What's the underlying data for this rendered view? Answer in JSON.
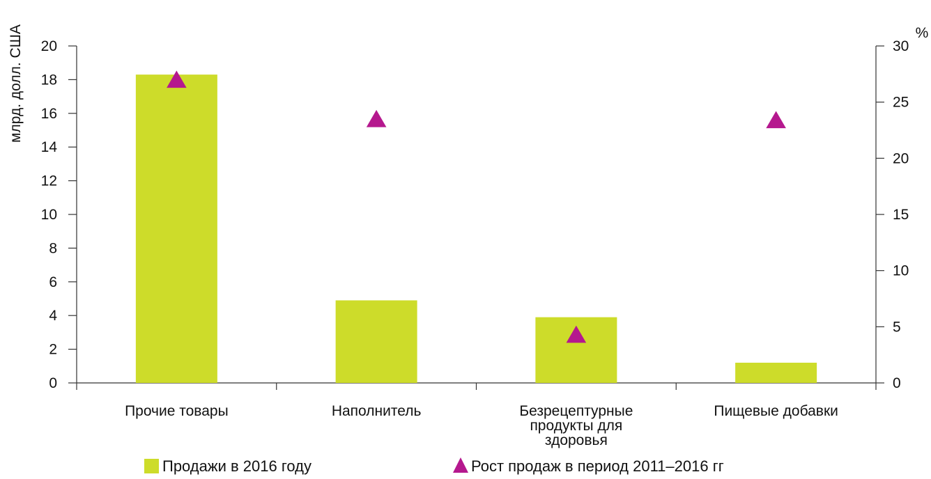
{
  "chart_data": {
    "type": "bar",
    "categories": [
      [
        "Прочие товары"
      ],
      [
        "Наполнитель"
      ],
      [
        "Безрецептурные",
        "продукты для",
        "здоровья"
      ],
      [
        "Пищевые добавки"
      ]
    ],
    "series": [
      {
        "name": "Продажи в 2016 году",
        "type": "bar",
        "axis": "left",
        "values": [
          18.3,
          4.9,
          3.9,
          1.2
        ]
      },
      {
        "name": "Рост продаж в период 2011–2016 гг",
        "type": "marker-triangle",
        "axis": "right",
        "values": [
          27,
          23.5,
          4.3,
          23.4
        ]
      }
    ],
    "ylabel": "млрд. долл. США",
    "ylabel_right": "%",
    "ylim": [
      0,
      20
    ],
    "ylim_right": [
      0,
      30
    ],
    "yticks": [
      "0",
      "2",
      "4",
      "6",
      "8",
      "10",
      "12",
      "14",
      "16",
      "18",
      "20"
    ],
    "yticks_right": [
      "0",
      "5",
      "10",
      "15",
      "20",
      "25",
      "30"
    ],
    "grid": false,
    "legend_position": "bottom",
    "colors": {
      "bar": "#cddc2a",
      "marker": "#b5188e",
      "axis": "#333333"
    }
  }
}
